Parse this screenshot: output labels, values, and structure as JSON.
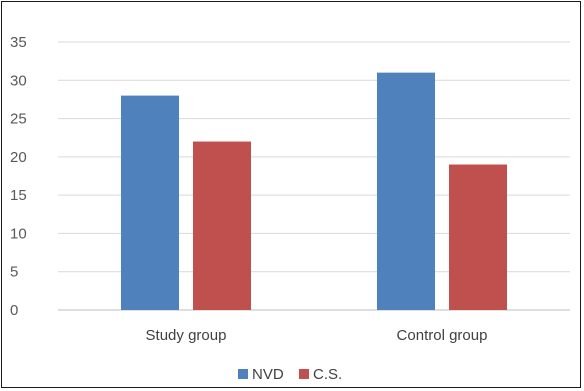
{
  "chart_data": {
    "type": "bar",
    "categories": [
      "Study group",
      "Control group"
    ],
    "series": [
      {
        "name": "NVD",
        "values": [
          28,
          31
        ],
        "color": "#4f81bd"
      },
      {
        "name": "C.S.",
        "values": [
          22,
          19
        ],
        "color": "#c0504d"
      }
    ],
    "ylim": [
      0,
      35
    ],
    "yticks": [
      0,
      5,
      10,
      15,
      20,
      25,
      30,
      35
    ],
    "grid": true,
    "legend": "bottom-center"
  }
}
